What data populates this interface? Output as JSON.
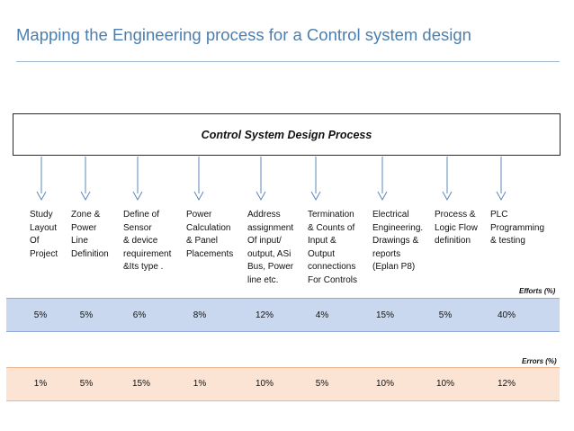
{
  "title": "Mapping the Engineering process for a Control system design",
  "process_label": "Control System Design Process",
  "steps": [
    {
      "label": "Study\nLayout\nOf\nProject"
    },
    {
      "label": "Zone &\nPower\nLine\nDefinition"
    },
    {
      "label": "Define of\nSensor\n& device\nrequirement\n&Its type ."
    },
    {
      "label": "Power\nCalculation\n& Panel\nPlacements"
    },
    {
      "label": "Address\nassignment\nOf  input/\noutput, ASi\nBus, Power\nline etc."
    },
    {
      "label": "Termination\n& Counts of\nInput &\nOutput\nconnections\nFor Controls"
    },
    {
      "label": "Electrical\nEngineering.\nDrawings  &\nreports\n(Eplan P8)"
    },
    {
      "label": "Process &\nLogic Flow\ndefinition"
    },
    {
      "label": "PLC\nProgramming\n& testing"
    }
  ],
  "efforts": {
    "title": "Efforts (%)",
    "values": [
      "5%",
      "5%",
      "6%",
      "8%",
      "12%",
      "4%",
      "15%",
      "5%",
      "40%"
    ],
    "color": "#cad8ef"
  },
  "errors": {
    "title": "Errors (%)",
    "values": [
      "1%",
      "5%",
      "15%",
      "1%",
      "10%",
      "5%",
      "10%",
      "10%",
      "12%"
    ],
    "color": "#fbe4d3"
  },
  "colors": {
    "title": "#4a7fb0",
    "arrow": "#5b86b8"
  },
  "icons": [
    "arrow-down-icon"
  ]
}
